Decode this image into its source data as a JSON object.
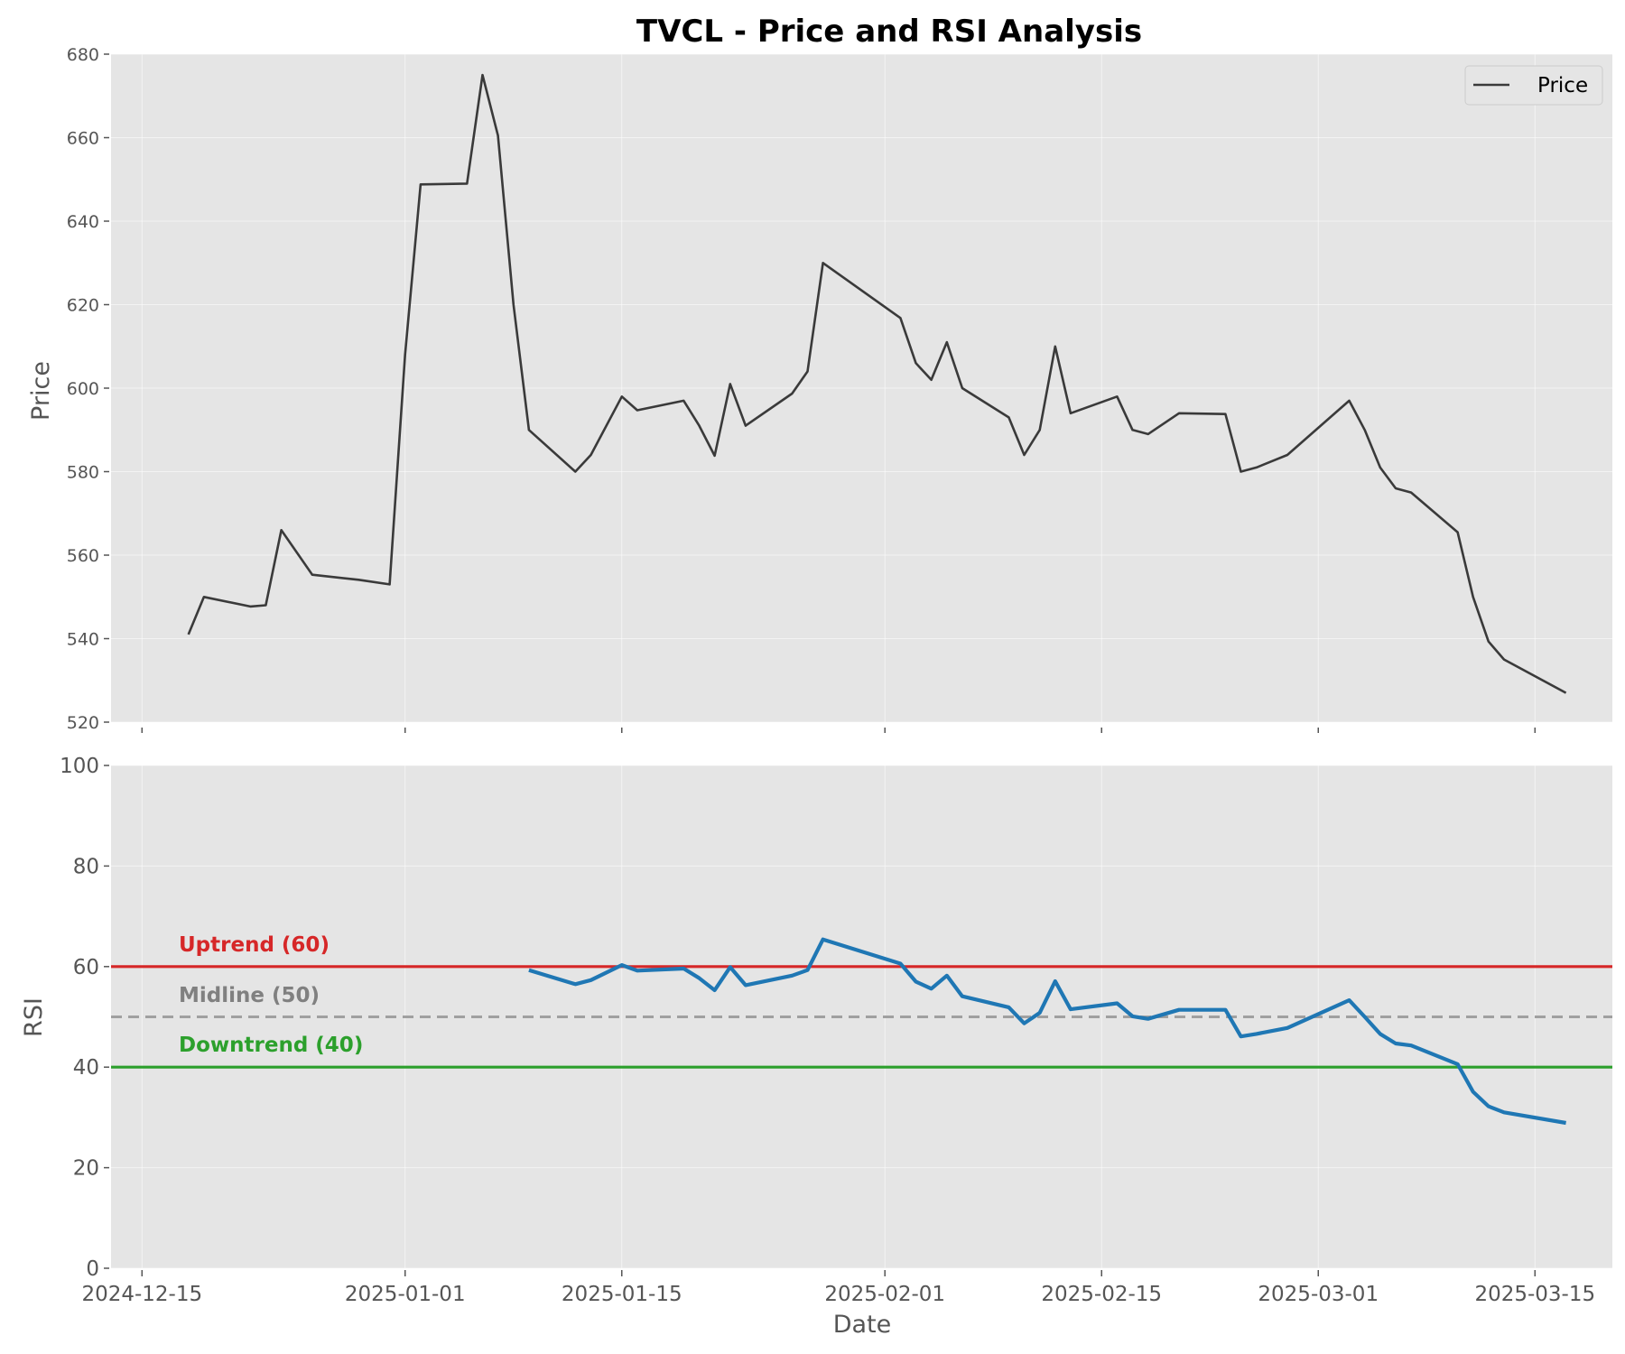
{
  "chart_data": [
    {
      "type": "line",
      "title": "TVCL - Price and RSI Analysis",
      "ylabel": "Price",
      "xlabel": "",
      "ylim": [
        520,
        680
      ],
      "yticks": [
        520,
        540,
        560,
        580,
        600,
        620,
        640,
        660,
        680
      ],
      "grid": true,
      "legend": {
        "position": "top-right",
        "entries": [
          "Price"
        ]
      },
      "colors": {
        "price": "#3a3a3a",
        "background": "#e5e5e5",
        "grid": "#ffffff"
      },
      "series": [
        {
          "name": "Price",
          "x": [
            "2024-12-18",
            "2024-12-19",
            "2024-12-22",
            "2024-12-23",
            "2024-12-24",
            "2024-12-26",
            "2024-12-29",
            "2024-12-31",
            "2025-01-01",
            "2025-01-02",
            "2025-01-05",
            "2025-01-06",
            "2025-01-07",
            "2025-01-08",
            "2025-01-09",
            "2025-01-12",
            "2025-01-13",
            "2025-01-15",
            "2025-01-16",
            "2025-01-19",
            "2025-01-20",
            "2025-01-21",
            "2025-01-22",
            "2025-01-23",
            "2025-01-26",
            "2025-01-27",
            "2025-01-28",
            "2025-02-02",
            "2025-02-03",
            "2025-02-04",
            "2025-02-05",
            "2025-02-06",
            "2025-02-09",
            "2025-02-10",
            "2025-02-11",
            "2025-02-12",
            "2025-02-13",
            "2025-02-16",
            "2025-02-17",
            "2025-02-18",
            "2025-02-20",
            "2025-02-23",
            "2025-02-24",
            "2025-02-25",
            "2025-02-27",
            "2025-03-03",
            "2025-03-04",
            "2025-03-05",
            "2025-03-06",
            "2025-03-07",
            "2025-03-10",
            "2025-03-11",
            "2025-03-12",
            "2025-03-13",
            "2025-03-17"
          ],
          "values": [
            541,
            550,
            547.7,
            548,
            566,
            555.3,
            554.1,
            553,
            608,
            648.8,
            649,
            675,
            660.5,
            620,
            590,
            580,
            584,
            598,
            594.7,
            597,
            591,
            583.8,
            601,
            591,
            598.7,
            604,
            630,
            616.8,
            606,
            602,
            611,
            600,
            593,
            584,
            590,
            610,
            594,
            598,
            590,
            589,
            594,
            593.8,
            580,
            581,
            584,
            597,
            590,
            581,
            576,
            575,
            565.5,
            550,
            539.3,
            535,
            527
          ]
        }
      ]
    },
    {
      "type": "line",
      "title": "",
      "xlabel": "Date",
      "ylabel": "RSI",
      "ylim": [
        0,
        100
      ],
      "yticks": [
        0,
        20,
        40,
        60,
        80,
        100
      ],
      "xticks": [
        "2024-12-15",
        "2025-01-01",
        "2025-01-15",
        "2025-02-01",
        "2025-02-15",
        "2025-03-01",
        "2025-03-15"
      ],
      "xlim": [
        "2024-12-13",
        "2025-03-20"
      ],
      "grid": true,
      "colors": {
        "rsi": "#1f77b4",
        "uptrend": "#d62728",
        "midline": "#a0a0a0",
        "downtrend": "#2ca02c"
      },
      "reference_lines": [
        {
          "label": "Uptrend (60)",
          "value": 60,
          "color": "#d62728",
          "style": "solid"
        },
        {
          "label": "Midline (50)",
          "value": 50,
          "color": "#a0a0a0",
          "style": "dashed"
        },
        {
          "label": "Downtrend (40)",
          "value": 40,
          "color": "#2ca02c",
          "style": "solid"
        }
      ],
      "series": [
        {
          "name": "RSI",
          "x": [
            "2025-01-09",
            "2025-01-12",
            "2025-01-13",
            "2025-01-15",
            "2025-01-16",
            "2025-01-19",
            "2025-01-20",
            "2025-01-21",
            "2025-01-22",
            "2025-01-23",
            "2025-01-26",
            "2025-01-27",
            "2025-01-28",
            "2025-02-02",
            "2025-02-03",
            "2025-02-04",
            "2025-02-05",
            "2025-02-06",
            "2025-02-09",
            "2025-02-10",
            "2025-02-11",
            "2025-02-12",
            "2025-02-13",
            "2025-02-16",
            "2025-02-17",
            "2025-02-18",
            "2025-02-20",
            "2025-02-23",
            "2025-02-24",
            "2025-02-25",
            "2025-02-27",
            "2025-03-03",
            "2025-03-04",
            "2025-03-05",
            "2025-03-06",
            "2025-03-07",
            "2025-03-10",
            "2025-03-11",
            "2025-03-12",
            "2025-03-13",
            "2025-03-17"
          ],
          "values": [
            59.3,
            56.5,
            57.3,
            60.3,
            59.2,
            59.6,
            57.7,
            55.3,
            59.9,
            56.3,
            58.2,
            59.3,
            65.4,
            60.6,
            57.0,
            55.6,
            58.2,
            54.1,
            51.9,
            48.7,
            50.8,
            57.1,
            51.5,
            52.7,
            50.1,
            49.6,
            51.4,
            51.4,
            46.1,
            46.6,
            47.8,
            53.3,
            50.0,
            46.6,
            44.7,
            44.3,
            40.6,
            35.1,
            32.2,
            31.0,
            28.9
          ]
        }
      ]
    }
  ]
}
